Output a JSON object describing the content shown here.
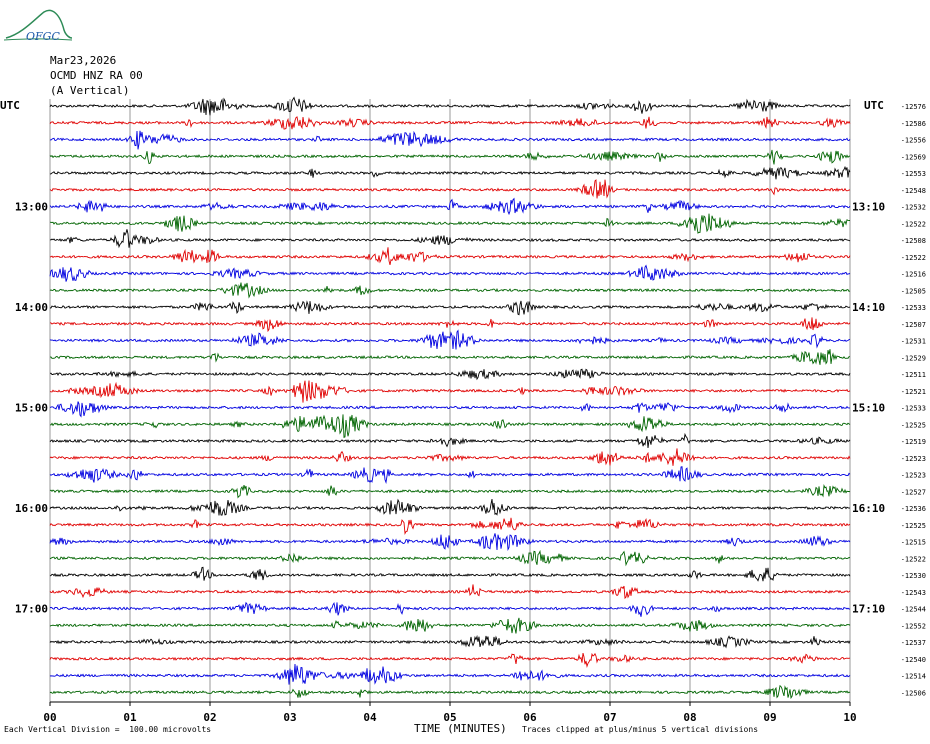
{
  "logo_text": "OFGC",
  "header": {
    "date": "Mar23,2026",
    "station": "OCMD HNZ RA 00",
    "component": "(A Vertical)"
  },
  "left_axis_title": "UTC",
  "right_axis_title": "UTC",
  "footer": {
    "scale_note": "Each Vertical Division =  100.00 microvolts",
    "xlabel": "TIME (MINUTES)",
    "clip_note": "Traces clipped at plus/minus 5 vertical divisions"
  },
  "colors": {
    "trace_cycle": [
      "#000000",
      "#e00000",
      "#0000e0",
      "#006400"
    ],
    "grid": "#808080"
  },
  "chart_data": {
    "type": "line",
    "xlabel": "TIME (MINUTES)",
    "xlim": [
      0,
      10
    ],
    "x_ticks": [
      "00",
      "01",
      "02",
      "03",
      "04",
      "05",
      "06",
      "07",
      "08",
      "09",
      "10"
    ],
    "trace_count": 36,
    "left_time_labels": [
      {
        "trace": 6,
        "label": "13:00"
      },
      {
        "trace": 12,
        "label": "14:00"
      },
      {
        "trace": 18,
        "label": "15:00"
      },
      {
        "trace": 24,
        "label": "16:00"
      },
      {
        "trace": 30,
        "label": "17:00"
      }
    ],
    "right_time_labels": [
      {
        "trace": 6,
        "label": "13:10"
      },
      {
        "trace": 12,
        "label": "14:10"
      },
      {
        "trace": 18,
        "label": "15:10"
      },
      {
        "trace": 24,
        "label": "16:10"
      },
      {
        "trace": 30,
        "label": "17:10"
      }
    ],
    "trace_offsets": [
      "-12576",
      "-12586",
      "-12556",
      "-12569",
      "-12553",
      "-12548",
      "-12532",
      "-12522",
      "-12508",
      "-12522",
      "-12516",
      "-12505",
      "-12533",
      "-12507",
      "-12531",
      "-12529",
      "-12511",
      "-12521",
      "-12533",
      "-12525",
      "-12519",
      "-12523",
      "-12523",
      "-12527",
      "-12536",
      "-12525",
      "-12515",
      "-12522",
      "-12530",
      "-12543",
      "-12544",
      "-12552",
      "-12537",
      "-12540",
      "-12514",
      "-12506"
    ],
    "grid": true
  }
}
